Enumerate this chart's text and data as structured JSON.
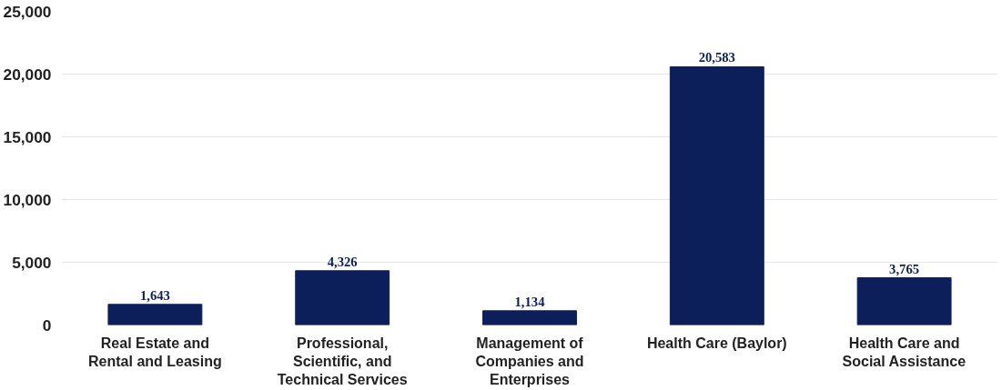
{
  "chart_data": {
    "type": "bar",
    "categories": [
      "Real Estate and\nRental and Leasing",
      "Professional,\nScientific, and\nTechnical Services",
      "Management of\nCompanies and\nEnterprises",
      "Health Care (Baylor)",
      "Health Care and\nSocial Assistance"
    ],
    "values": [
      1643,
      4326,
      1134,
      20583,
      3765
    ],
    "color": "#0c1f5b",
    "ylim": [
      0,
      25000
    ],
    "yticks": [
      {
        "value": 0,
        "label": "0"
      },
      {
        "value": 5000,
        "label": "5,000"
      },
      {
        "value": 10000,
        "label": "10,000"
      },
      {
        "value": 15000,
        "label": "15,000"
      },
      {
        "value": 20000,
        "label": "20,000"
      },
      {
        "value": 25000,
        "label": "25,000"
      }
    ],
    "value_labels": [
      "1,643",
      "4,326",
      "1,134",
      "20,583",
      "3,765"
    ],
    "grid": "y"
  }
}
